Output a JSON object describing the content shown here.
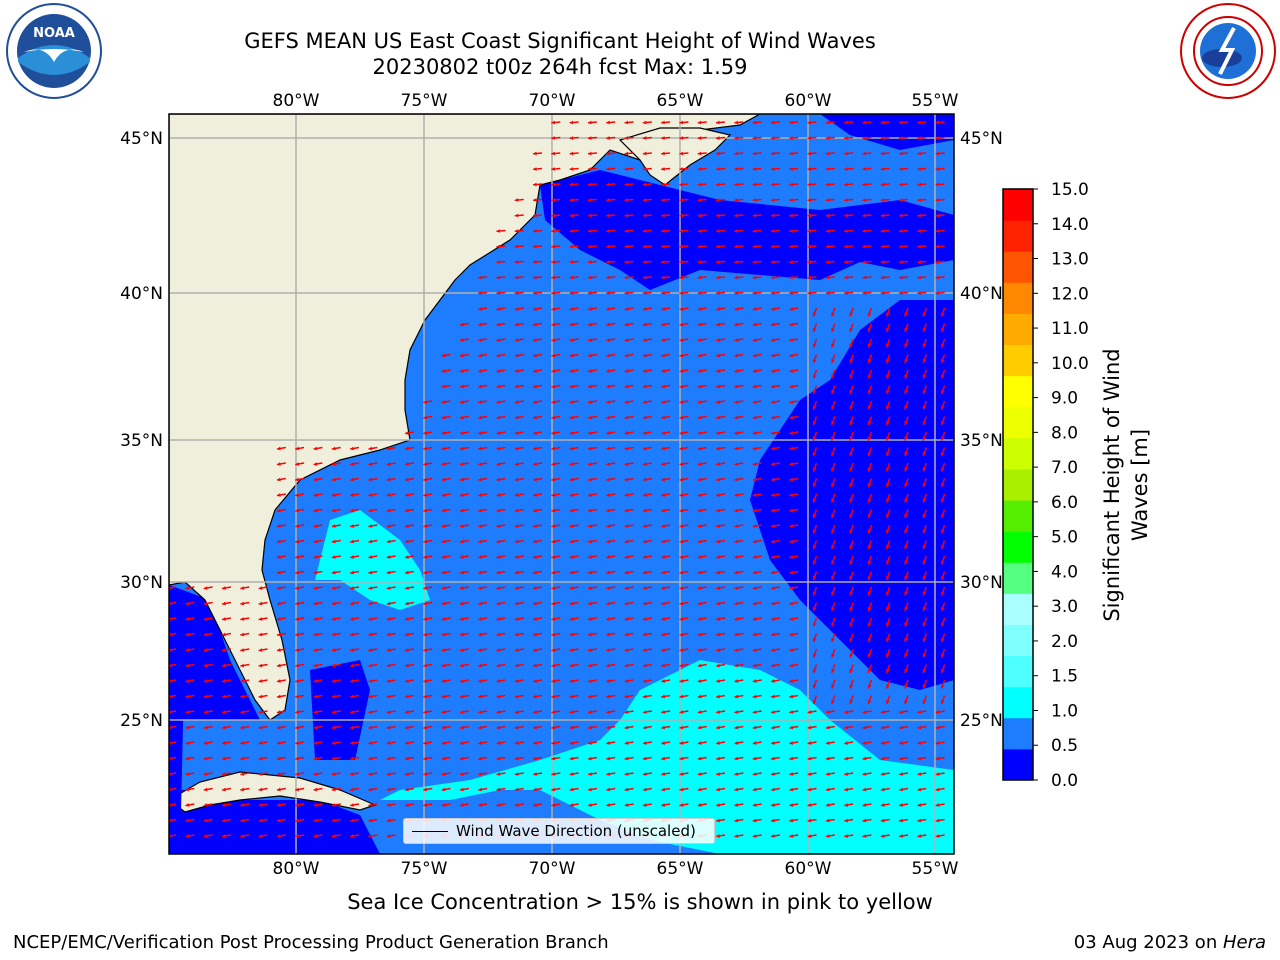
{
  "title_line1": "GEFS MEAN US East Coast Significant Height of Wind Waves",
  "title_line2": "20230802 t00z 264h fcst   Max: 1.59",
  "map": {
    "lon_ticks": [
      "80°W",
      "75°W",
      "70°W",
      "65°W",
      "60°W",
      "55°W"
    ],
    "lat_ticks": [
      "45°N",
      "40°N",
      "35°N",
      "30°N",
      "25°N"
    ],
    "legend_label": "Wind Wave Direction (unscaled)"
  },
  "colorbar": {
    "label": "Significant Height of Wind Waves [m]",
    "ticks": [
      "0.0",
      "0.5",
      "1.0",
      "1.5",
      "2.0",
      "3.0",
      "4.0",
      "5.0",
      "6.0",
      "7.0",
      "8.0",
      "9.0",
      "10.0",
      "11.0",
      "12.0",
      "13.0",
      "14.0",
      "15.0"
    ],
    "colors": [
      "#0000ff",
      "#1e7cff",
      "#00ffff",
      "#4dffff",
      "#80ffff",
      "#aaffff",
      "#55ff80",
      "#00ff00",
      "#55ee00",
      "#aaee00",
      "#ccff00",
      "#eeff00",
      "#ffff00",
      "#ffcc00",
      "#ffaa00",
      "#ff8800",
      "#ff5500",
      "#ff2200",
      "#ff0000"
    ]
  },
  "subtitle": "Sea Ice Concentration > 15% is shown in pink to yellow",
  "footer_left": "NCEP/EMC/Verification Post Processing Product Generation Branch",
  "footer_date": "03 Aug 2023 on ",
  "footer_machine": "Hera",
  "logos": {
    "left": "noaa-logo",
    "right": "nws-logo"
  },
  "map_colors": {
    "land": "#efefdb",
    "band_0_0_5": "#0000ff",
    "band_0_5_1_0": "#1e7cff",
    "band_1_0_1_5": "#00ffff",
    "arrow": "#ff0000"
  }
}
